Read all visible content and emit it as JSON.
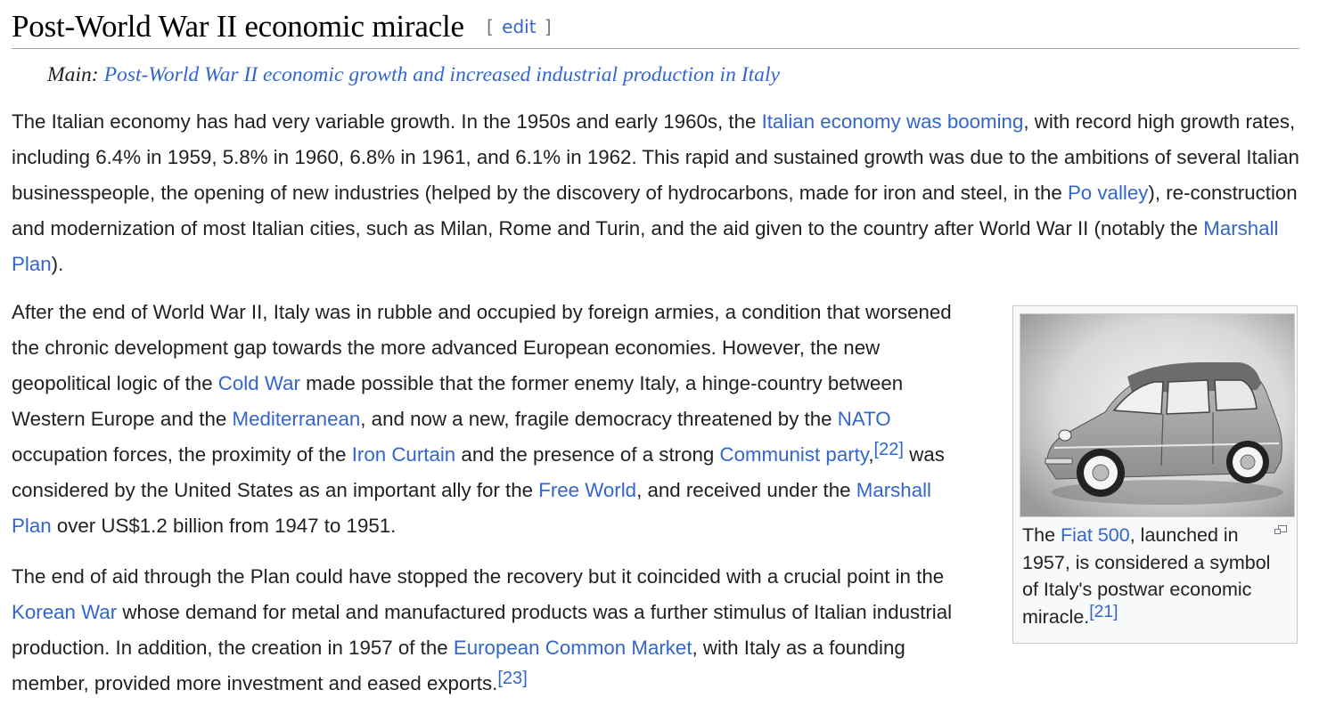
{
  "section": {
    "title": "Post-World War II economic miracle",
    "edit_bracket_open": "[",
    "edit_label": "edit",
    "edit_bracket_close": "]"
  },
  "hatnote": {
    "prefix": "Main: ",
    "link": "Post-World War II economic growth and increased industrial production in Italy"
  },
  "p1": {
    "t1": "The Italian economy has had very variable growth. In the 1950s and early 1960s, the ",
    "l1": "Italian economy was booming",
    "t2": ", with record high growth rates, including 6.4% in 1959, 5.8% in 1960, 6.8% in 1961, and 6.1% in 1962. This rapid and sustained growth was due to the ambitions of several Italian businesspeople, the opening of new industries (helped by the discovery of hydrocarbons, made for iron and steel, in the ",
    "l2": "Po valley",
    "t3": "), re-construction and modernization of most Italian cities, such as Milan, Rome and Turin, and the aid given to the country after World War II (notably the ",
    "l3": "Marshall Plan",
    "t4": ")."
  },
  "p2": {
    "t1": "After the end of World War II, Italy was in rubble and occupied by foreign armies, a condition that worsened the chronic development gap towards the more advanced European economies. However, the new geopolitical logic of the ",
    "l1": "Cold War",
    "t2": " made possible that the former enemy Italy, a hinge-country between Western Europe and the ",
    "l2": "Mediterranean",
    "t3": ", and now a new, fragile democracy threatened by the ",
    "l3": "NATO",
    "t4": " occupation forces, the proximity of the ",
    "l4": "Iron Curtain",
    "t5": " and the presence of a strong ",
    "l5": "Communist party",
    "t6": ",",
    "ref": "[22]",
    "t7": " was considered by the United States as an important ally for the ",
    "l6": "Free World",
    "t8": ", and received under the ",
    "l7": "Marshall Plan",
    "t9": " over US$1.2 billion from 1947 to 1951."
  },
  "p3": {
    "t1": "The end of aid through the Plan could have stopped the recovery but it coincided with a crucial point in the ",
    "l1": "Korean War",
    "t2": " whose demand for metal and manufactured products was a further stimulus of Italian industrial production. In addition, the creation in 1957 of the ",
    "l2": "European Common Market",
    "t3": ", with Italy as a founding member, provided more investment and eased exports.",
    "ref": "[23]"
  },
  "figure": {
    "cap_t1": "The ",
    "cap_link": "Fiat 500",
    "cap_t2": ", launched in 1957, is considered a symbol of Italy's postwar economic miracle.",
    "cap_ref": "[21]",
    "magnify_icon": "magnify-clip-icon"
  },
  "colors": {
    "link": "#3366cc",
    "text": "#202122",
    "rule": "#a2a9b1"
  }
}
